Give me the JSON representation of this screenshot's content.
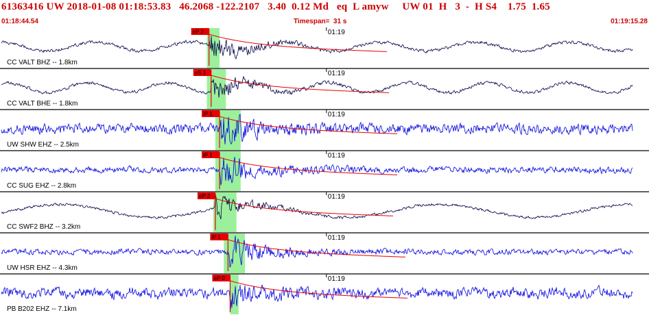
{
  "header": {
    "title": "61363416 UW 2018-01-08 01:18:53.83   46.2068 -122.2107   3.40  0.12 Md   eq  L amyw     UW 01  H   3  -  H S4    1.75  1.65",
    "start_time": "01:18:44.54",
    "timespan": "Timespan=  31 s",
    "end_time": "01:19:15.28"
  },
  "colors": {
    "pick_red": "#e60000",
    "header_red": "#cc0000",
    "window_green": "#9cf09c",
    "trace_blue": "#0000dd",
    "trace_navy": "#000044",
    "divider": "#000000"
  },
  "chart_data": {
    "type": "line",
    "title": "61363416 UW 2018-01-08 01:18:53.83",
    "x_unit": "time",
    "xlim": [
      "01:18:44.54",
      "01:19:15.28"
    ],
    "minute_tick_label": "01:19",
    "grid": false,
    "series": [
      {
        "name": "CC VALT BHZ -- 1.8km",
        "color": "navy",
        "pick": "eP 2",
        "pick_time_s": 9.9,
        "window_s": [
          9.8,
          10.4
        ],
        "noise": 0.18,
        "low_freq": 0.55,
        "period_s": 4.5,
        "burst": 0.75,
        "seed": 11
      },
      {
        "name": "CC VALT BHE -- 1.8km",
        "color": "navy",
        "pick": "eS 1",
        "pick_time_s": 10.0,
        "window_s": [
          9.8,
          10.7
        ],
        "noise": 0.18,
        "low_freq": 0.6,
        "period_s": 3.8,
        "burst": 0.7,
        "seed": 23
      },
      {
        "name": "UW SHW EHZ -- 2.5km",
        "color": "blue",
        "pick": "iP 1",
        "pick_time_s": 10.4,
        "window_s": [
          10.2,
          11.4
        ],
        "noise": 0.55,
        "low_freq": 0.05,
        "period_s": 6.0,
        "burst": 0.9,
        "seed": 37
      },
      {
        "name": "CC SUG EHZ -- 2.8km",
        "color": "blue",
        "pick": "iP 1",
        "pick_time_s": 10.4,
        "window_s": [
          10.2,
          11.4
        ],
        "noise": 0.35,
        "low_freq": 0.08,
        "period_s": 5.0,
        "burst": 0.85,
        "seed": 41
      },
      {
        "name": "CC SWF2 BHZ -- 3.2km",
        "color": "navy",
        "pick": "eP 2",
        "pick_time_s": 10.2,
        "window_s": [
          10.1,
          11.2
        ],
        "noise": 0.15,
        "low_freq": 0.8,
        "period_s": 9.0,
        "burst": 0.6,
        "seed": 53
      },
      {
        "name": "UW HSR EHZ -- 4.3km",
        "color": "blue",
        "pick": "iP 1",
        "pick_time_s": 10.8,
        "window_s": [
          10.6,
          11.6
        ],
        "noise": 0.3,
        "low_freq": 0.05,
        "period_s": 6.0,
        "burst": 0.9,
        "seed": 67
      },
      {
        "name": "PB B202 EHZ -- 7.1km",
        "color": "blue",
        "pick": "eP 0",
        "pick_time_s": 10.9,
        "window_s": [
          10.9,
          11.3
        ],
        "noise": 0.55,
        "low_freq": 0.2,
        "period_s": 2.0,
        "burst": 0.6,
        "seed": 79
      }
    ]
  }
}
